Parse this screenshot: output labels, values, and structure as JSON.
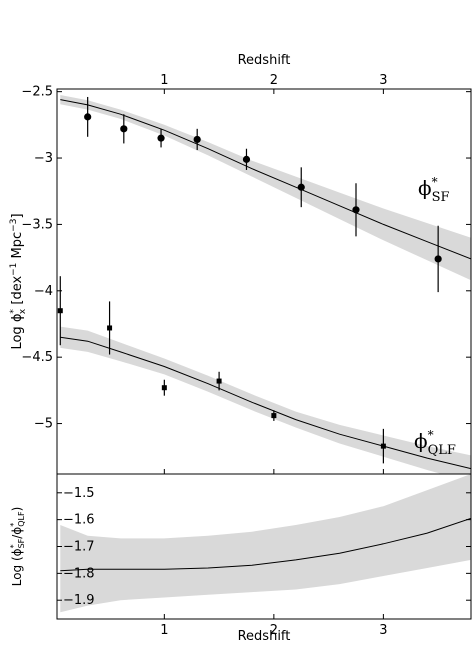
{
  "chart_data": [
    {
      "type": "scatter",
      "panel": "top",
      "xlabel": "Redshift",
      "xlabel_position": "top",
      "ylabel": "Log ϕ*x [dex⁻¹ Mpc⁻³]",
      "ylabel_parts": {
        "pre": "Log ϕ",
        "sup1": "*",
        "sub1": "x",
        "mid": " [dex",
        "sup2": "−1",
        "mid2": " Mpc",
        "sup3": "−3",
        "post": "]"
      },
      "xlim": [
        0.02,
        3.8
      ],
      "ylim": [
        -5.38,
        -2.48
      ],
      "xticks": [
        1,
        2,
        3
      ],
      "xtick_labels": [
        "1",
        "2",
        "3"
      ],
      "yticks": [
        -2.5,
        -3,
        -3.5,
        -4,
        -4.5,
        -5
      ],
      "ytick_labels": [
        "−2.5",
        "−3",
        "−3.5",
        "−4",
        "−4.5",
        "−5"
      ],
      "grid": false,
      "series": [
        {
          "name": "ϕ*SF",
          "label_parts": {
            "base": "ϕ",
            "sup": "*",
            "sub": "SF"
          },
          "marker": "circle",
          "points": [
            {
              "x": 0.3,
              "y": -2.69,
              "err": 0.15
            },
            {
              "x": 0.63,
              "y": -2.78,
              "err": 0.11
            },
            {
              "x": 0.97,
              "y": -2.85,
              "err": 0.07
            },
            {
              "x": 1.3,
              "y": -2.86,
              "err": 0.08
            },
            {
              "x": 1.75,
              "y": -3.01,
              "err": 0.08
            },
            {
              "x": 2.25,
              "y": -3.22,
              "err": 0.15
            },
            {
              "x": 2.75,
              "y": -3.39,
              "err": 0.2
            },
            {
              "x": 3.5,
              "y": -3.76,
              "err": 0.25
            }
          ],
          "fit": {
            "x": [
              0.05,
              0.3,
              0.6,
              1.0,
              1.4,
              1.8,
              2.2,
              2.6,
              3.0,
              3.4,
              3.8
            ],
            "y": [
              -2.56,
              -2.6,
              -2.67,
              -2.79,
              -2.93,
              -3.08,
              -3.22,
              -3.36,
              -3.5,
              -3.63,
              -3.76
            ],
            "band_halfwidth": [
              0.035,
              0.035,
              0.035,
              0.04,
              0.05,
              0.06,
              0.08,
              0.1,
              0.12,
              0.14,
              0.16
            ]
          }
        },
        {
          "name": "ϕ*QLF",
          "label_parts": {
            "base": "ϕ",
            "sup": "*",
            "sub": "QLF"
          },
          "marker": "square",
          "points": [
            {
              "x": 0.05,
              "y": -4.15,
              "err": 0.26
            },
            {
              "x": 0.5,
              "y": -4.28,
              "err": 0.2
            },
            {
              "x": 1.0,
              "y": -4.73,
              "err": 0.06
            },
            {
              "x": 1.5,
              "y": -4.68,
              "err": 0.07
            },
            {
              "x": 2.0,
              "y": -4.94,
              "err": 0.04
            },
            {
              "x": 3.0,
              "y": -5.17,
              "err": 0.13
            }
          ],
          "fit": {
            "x": [
              0.05,
              0.3,
              0.6,
              1.0,
              1.4,
              1.8,
              2.2,
              2.6,
              3.0,
              3.4,
              3.8
            ],
            "y": [
              -4.35,
              -4.38,
              -4.46,
              -4.57,
              -4.7,
              -4.84,
              -4.97,
              -5.08,
              -5.17,
              -5.26,
              -5.34
            ],
            "band_halfwidth": [
              0.08,
              0.08,
              0.07,
              0.06,
              0.06,
              0.06,
              0.06,
              0.07,
              0.08,
              0.09,
              0.1
            ]
          }
        }
      ]
    },
    {
      "type": "line",
      "panel": "bottom",
      "xlabel": "Redshift",
      "ylabel": "Log (ϕ*SF/ϕ*QLF)",
      "ylabel_parts": {
        "pre": "Log (ϕ",
        "sup1": "*",
        "sub1": "SF",
        "mid": "/ϕ",
        "sup2": "*",
        "sub2": "QLF",
        "post": ")"
      },
      "xlim": [
        0.02,
        3.8
      ],
      "ylim": [
        -1.97,
        -1.43
      ],
      "xticks": [
        1,
        2,
        3
      ],
      "xtick_labels": [
        "1",
        "2",
        "3"
      ],
      "yticks": [
        -1.5,
        -1.6,
        -1.7,
        -1.8,
        -1.9
      ],
      "ytick_labels": [
        "−1.5",
        "−1.6",
        "−1.7",
        "−1.8",
        "−1.9"
      ],
      "grid": false,
      "series": [
        {
          "x": [
            0.05,
            0.3,
            0.6,
            1.0,
            1.4,
            1.8,
            2.2,
            2.6,
            3.0,
            3.4,
            3.8
          ],
          "y": [
            -1.79,
            -1.785,
            -1.785,
            -1.785,
            -1.78,
            -1.77,
            -1.75,
            -1.725,
            -1.69,
            -1.65,
            -1.595
          ],
          "band_low": [
            -1.945,
            -1.92,
            -1.9,
            -1.89,
            -1.88,
            -1.87,
            -1.86,
            -1.84,
            -1.81,
            -1.78,
            -1.75
          ],
          "band_high": [
            -1.62,
            -1.66,
            -1.67,
            -1.67,
            -1.66,
            -1.645,
            -1.62,
            -1.59,
            -1.55,
            -1.49,
            -1.43
          ]
        }
      ]
    }
  ]
}
